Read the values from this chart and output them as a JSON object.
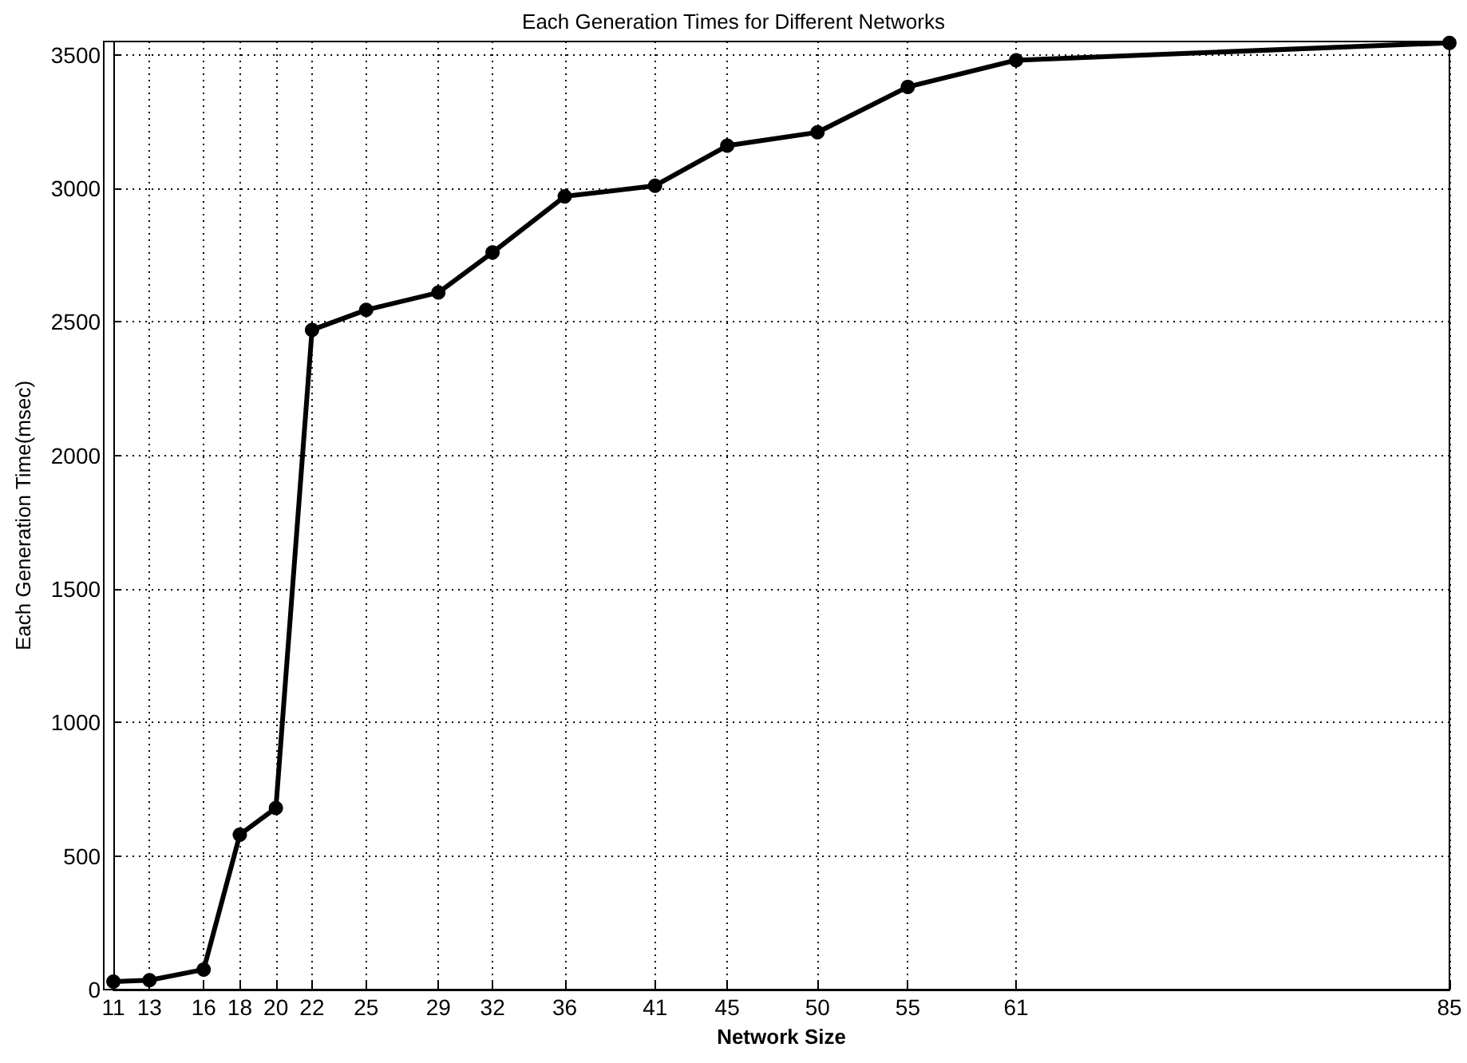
{
  "chart_data": {
    "type": "line",
    "title": "Each Generation Times for Different Networks",
    "xlabel": "Network Size",
    "ylabel": "Each Generation Time(msec)",
    "x": [
      11,
      13,
      16,
      18,
      20,
      22,
      25,
      29,
      32,
      36,
      41,
      45,
      50,
      55,
      61,
      85
    ],
    "series": [
      {
        "color": "#000000",
        "values": [
          30,
          35,
          75,
          580,
          680,
          2470,
          2545,
          2610,
          2760,
          2970,
          3010,
          3160,
          3210,
          3380,
          3480,
          3545
        ]
      }
    ],
    "xlim": [
      11,
      85
    ],
    "xticks": [
      11,
      13,
      16,
      18,
      20,
      22,
      25,
      29,
      32,
      36,
      41,
      45,
      50,
      55,
      61,
      85
    ],
    "ylim": [
      0,
      3550
    ],
    "yticks": [
      0,
      500,
      1000,
      1500,
      2000,
      2500,
      3000,
      3500
    ],
    "grid": true,
    "marker": "circle",
    "line_style": "solid"
  }
}
